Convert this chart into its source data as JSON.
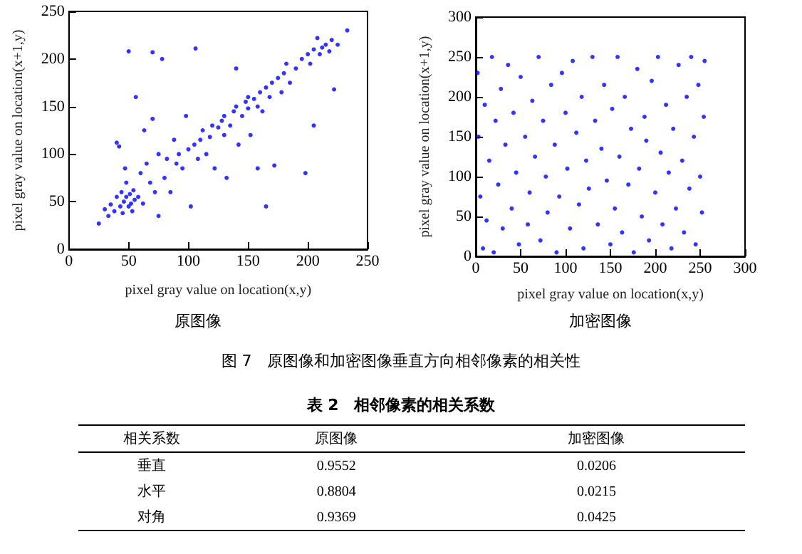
{
  "chart_data": [
    {
      "type": "scatter",
      "title": "原图像",
      "xlabel": "pixel gray value on location(x,y)",
      "ylabel": "pixel gray value on location(x+1,y)",
      "xlim": [
        0,
        250
      ],
      "ylim": [
        0,
        250
      ],
      "xticks": [
        0,
        50,
        100,
        150,
        200,
        250
      ],
      "yticks": [
        0,
        50,
        100,
        150,
        200,
        250
      ],
      "marker": "circle",
      "series": [
        {
          "color": "#0000ff",
          "x": [
            25,
            30,
            33,
            35,
            38,
            40,
            40,
            42,
            43,
            44,
            45,
            46,
            47,
            48,
            48,
            50,
            50,
            51,
            52,
            53,
            54,
            55,
            56,
            58,
            60,
            62,
            63,
            65,
            68,
            70,
            70,
            72,
            75,
            75,
            78,
            80,
            82,
            85,
            88,
            90,
            92,
            95,
            98,
            100,
            102,
            105,
            106,
            108,
            110,
            112,
            115,
            118,
            120,
            122,
            125,
            128,
            130,
            130,
            132,
            135,
            138,
            140,
            140,
            142,
            145,
            148,
            150,
            150,
            152,
            155,
            158,
            158,
            160,
            162,
            165,
            165,
            168,
            170,
            172,
            175,
            178,
            180,
            182,
            185,
            190,
            195,
            198,
            200,
            202,
            205,
            205,
            208,
            210,
            212,
            215,
            218,
            220,
            222,
            225,
            233
          ],
          "values": [
            27,
            42,
            35,
            47,
            40,
            55,
            112,
            108,
            45,
            60,
            38,
            50,
            85,
            55,
            70,
            45,
            208,
            58,
            48,
            40,
            62,
            52,
            160,
            55,
            80,
            48,
            125,
            90,
            70,
            137,
            207,
            60,
            35,
            100,
            200,
            75,
            95,
            60,
            115,
            90,
            100,
            85,
            140,
            105,
            45,
            110,
            211,
            95,
            115,
            125,
            100,
            118,
            130,
            85,
            128,
            135,
            140,
            120,
            75,
            130,
            145,
            190,
            150,
            110,
            140,
            155,
            148,
            160,
            120,
            158,
            150,
            85,
            165,
            145,
            45,
            170,
            160,
            175,
            88,
            180,
            165,
            185,
            195,
            175,
            190,
            200,
            80,
            205,
            195,
            130,
            210,
            222,
            205,
            212,
            215,
            208,
            220,
            168,
            215,
            230
          ]
        }
      ]
    },
    {
      "type": "scatter",
      "title": "加密图像",
      "xlabel": "pixel gray value on location(x,y)",
      "ylabel": "pixel gray value on location(x+1,y)",
      "xlim": [
        0,
        300
      ],
      "ylim": [
        0,
        300
      ],
      "xticks": [
        0,
        50,
        100,
        150,
        200,
        250,
        300
      ],
      "yticks": [
        0,
        50,
        100,
        150,
        200,
        250,
        300
      ],
      "marker": "circle",
      "series": [
        {
          "color": "#0000ff",
          "x": [
            2,
            3,
            5,
            8,
            10,
            12,
            15,
            18,
            20,
            22,
            25,
            28,
            30,
            33,
            36,
            40,
            42,
            45,
            48,
            50,
            55,
            58,
            60,
            63,
            66,
            70,
            72,
            75,
            78,
            80,
            84,
            88,
            90,
            93,
            96,
            100,
            102,
            105,
            108,
            112,
            115,
            118,
            120,
            123,
            126,
            130,
            133,
            136,
            140,
            143,
            146,
            150,
            152,
            155,
            158,
            160,
            163,
            166,
            170,
            173,
            176,
            180,
            182,
            185,
            188,
            190,
            193,
            196,
            200,
            203,
            206,
            208,
            212,
            215,
            218,
            220,
            223,
            226,
            230,
            232,
            235,
            238,
            240,
            243,
            245,
            248,
            250,
            252,
            254,
            255
          ],
          "values": [
            230,
            150,
            75,
            10,
            190,
            45,
            120,
            250,
            5,
            170,
            90,
            210,
            35,
            140,
            240,
            60,
            180,
            105,
            15,
            225,
            150,
            40,
            80,
            195,
            125,
            250,
            20,
            170,
            100,
            55,
            215,
            140,
            5,
            75,
            230,
            180,
            110,
            35,
            245,
            155,
            65,
            200,
            10,
            120,
            85,
            250,
            170,
            40,
            135,
            215,
            95,
            15,
            185,
            60,
            250,
            125,
            30,
            200,
            90,
            160,
            5,
            235,
            110,
            50,
            175,
            145,
            20,
            220,
            80,
            250,
            130,
            40,
            190,
            105,
            10,
            160,
            60,
            240,
            120,
            30,
            200,
            85,
            250,
            150,
            15,
            215,
            100,
            55,
            175,
            245
          ]
        }
      ]
    },
    {
      "type": "other",
      "annotations": [
        "图 7　原图像和加密图像垂直方向相邻像素的相关性"
      ],
      "title": "表 2　相邻像素的相关系数",
      "xlabel": "相关系数",
      "categories": [
        "垂直",
        "水平",
        "对角"
      ],
      "data_labels": true,
      "series": [
        {
          "name": "原图像",
          "values": [
            0.9552,
            0.8804,
            0.9369
          ]
        },
        {
          "name": "加密图像",
          "values": [
            0.0206,
            0.0215,
            0.0425
          ]
        }
      ]
    }
  ]
}
